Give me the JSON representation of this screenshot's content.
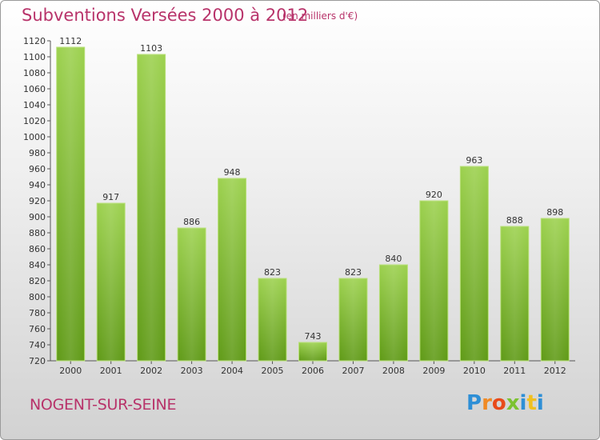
{
  "title": "Subventions Versées 2000 à 2012",
  "subtitle": "(en milliers d'€)",
  "place": "NOGENT-SUR-SEINE",
  "logo": {
    "letters": [
      "P",
      "r",
      "o",
      "x",
      "i",
      "t",
      "i"
    ],
    "colors": [
      "#2e8fd6",
      "#f08a24",
      "#e84a1a",
      "#7cc230",
      "#2e8fd6",
      "#f0c020",
      "#2e8fd6"
    ]
  },
  "colors": {
    "bar_top": "#9cd14e",
    "bar_bottom": "#5f9a16",
    "text": "#b8336a"
  },
  "chart_data": {
    "type": "bar",
    "categories": [
      "2000",
      "2001",
      "2002",
      "2003",
      "2004",
      "2005",
      "2006",
      "2007",
      "2008",
      "2009",
      "2010",
      "2011",
      "2012"
    ],
    "values": [
      1112,
      917,
      1103,
      886,
      948,
      823,
      743,
      823,
      840,
      920,
      963,
      888,
      898
    ],
    "title": "Subventions Versées 2000 à 2012",
    "ylim": [
      720,
      1120
    ],
    "yticks": [
      720,
      740,
      760,
      780,
      800,
      820,
      840,
      860,
      880,
      900,
      920,
      940,
      960,
      980,
      1000,
      1020,
      1040,
      1060,
      1080,
      1100,
      1120
    ],
    "grid": false,
    "legend": "none"
  }
}
